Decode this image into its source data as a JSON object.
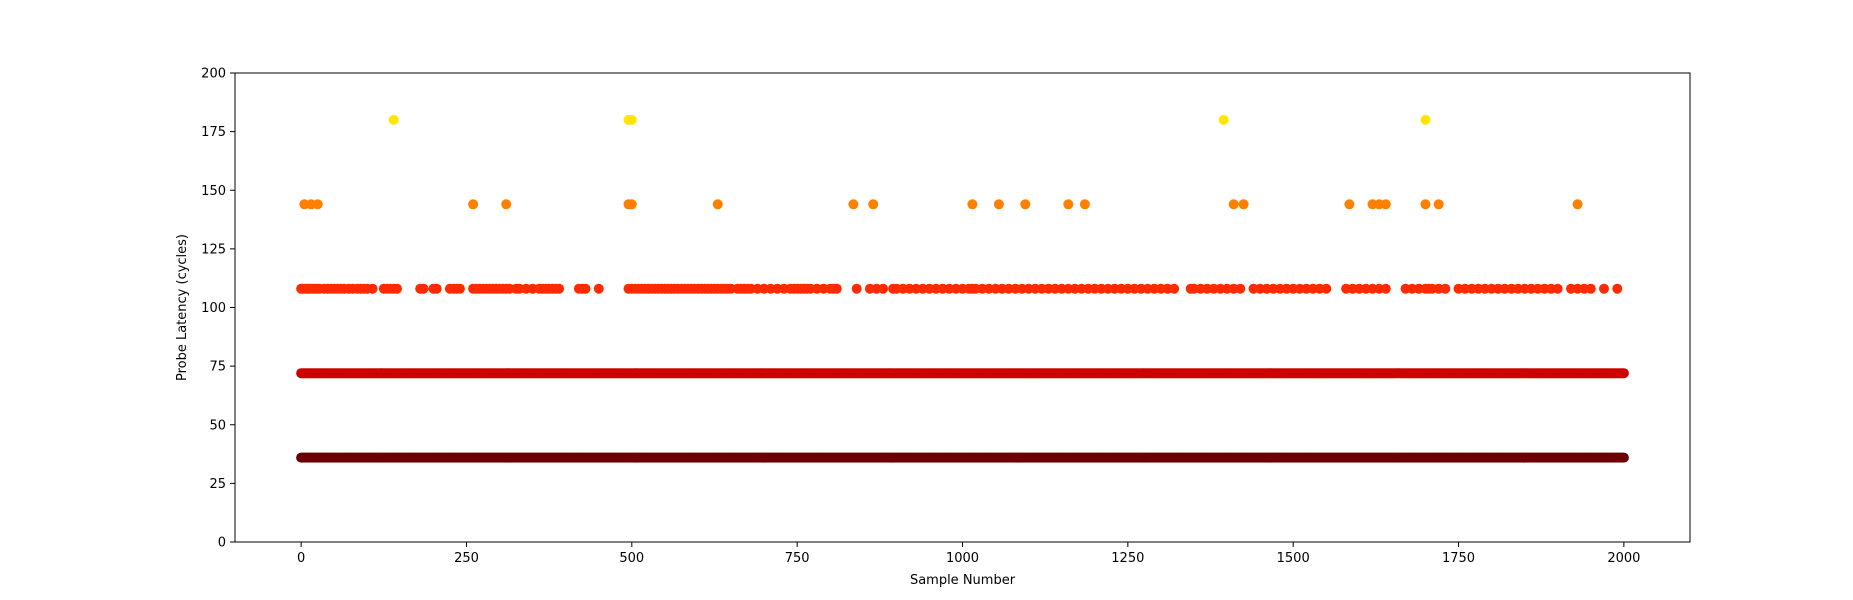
{
  "chart_data": {
    "type": "scatter",
    "title": "",
    "xlabel": "Sample Number",
    "ylabel": "Probe Latency (cycles)",
    "xlim": [
      -100,
      2100
    ],
    "ylim": [
      0,
      200
    ],
    "xticks": [
      0,
      250,
      500,
      750,
      1000,
      1250,
      1500,
      1750,
      2000
    ],
    "yticks": [
      0,
      25,
      50,
      75,
      100,
      125,
      150,
      175,
      200
    ],
    "grid": false,
    "legend": "none",
    "colormap": "hot",
    "color_by": "y",
    "x_range": [
      0,
      2000
    ],
    "levels": [
      {
        "y": 36,
        "color": "#6b0000"
      },
      {
        "y": 72,
        "color": "#cc0000"
      },
      {
        "y": 108,
        "color": "#ff2a00"
      },
      {
        "y": 144,
        "color": "#ff7f00"
      },
      {
        "y": 180,
        "color": "#ffe600"
      }
    ],
    "series": [
      {
        "y": 36,
        "x": "all samples 0–2000"
      },
      {
        "y": 72,
        "x": "all samples 0–2000"
      },
      {
        "y": 108,
        "x": [
          0,
          2,
          5,
          8,
          10,
          12,
          15,
          18,
          22,
          25,
          28,
          35,
          40,
          45,
          50,
          55,
          60,
          65,
          72,
          78,
          85,
          90,
          95,
          100,
          108,
          125,
          130,
          135,
          140,
          145,
          180,
          185,
          200,
          205,
          225,
          230,
          235,
          240,
          260,
          265,
          270,
          275,
          280,
          285,
          290,
          295,
          300,
          305,
          310,
          315,
          325,
          330,
          340,
          350,
          360,
          365,
          370,
          375,
          380,
          385,
          390,
          420,
          425,
          430,
          450,
          495,
          500,
          505,
          510,
          515,
          520,
          525,
          530,
          535,
          540,
          545,
          550,
          555,
          560,
          565,
          570,
          575,
          580,
          585,
          590,
          595,
          600,
          605,
          610,
          615,
          620,
          625,
          630,
          635,
          640,
          645,
          650,
          660,
          665,
          670,
          675,
          680,
          690,
          700,
          710,
          720,
          730,
          740,
          745,
          750,
          755,
          760,
          765,
          770,
          780,
          790,
          800,
          805,
          810,
          840,
          860,
          870,
          880,
          895,
          900,
          910,
          920,
          930,
          940,
          950,
          960,
          970,
          980,
          990,
          1000,
          1010,
          1015,
          1020,
          1030,
          1040,
          1050,
          1060,
          1070,
          1080,
          1090,
          1100,
          1110,
          1120,
          1130,
          1140,
          1150,
          1160,
          1170,
          1180,
          1190,
          1200,
          1210,
          1220,
          1230,
          1240,
          1250,
          1260,
          1270,
          1280,
          1290,
          1300,
          1310,
          1320,
          1345,
          1350,
          1360,
          1370,
          1380,
          1390,
          1400,
          1410,
          1420,
          1440,
          1450,
          1460,
          1470,
          1480,
          1490,
          1500,
          1510,
          1520,
          1530,
          1540,
          1550,
          1580,
          1590,
          1600,
          1610,
          1620,
          1630,
          1640,
          1670,
          1680,
          1690,
          1700,
          1705,
          1710,
          1720,
          1730,
          1750,
          1760,
          1770,
          1780,
          1790,
          1800,
          1810,
          1820,
          1830,
          1840,
          1850,
          1860,
          1870,
          1880,
          1890,
          1900,
          1920,
          1930,
          1940,
          1950,
          1970,
          1990
        ]
      },
      {
        "y": 144,
        "x": [
          5,
          15,
          25,
          260,
          310,
          495,
          500,
          630,
          835,
          865,
          1015,
          1055,
          1095,
          1160,
          1185,
          1410,
          1425,
          1585,
          1620,
          1630,
          1640,
          1700,
          1720,
          1930
        ]
      },
      {
        "y": 180,
        "x": [
          140,
          495,
          500,
          1395,
          1700
        ]
      }
    ]
  }
}
